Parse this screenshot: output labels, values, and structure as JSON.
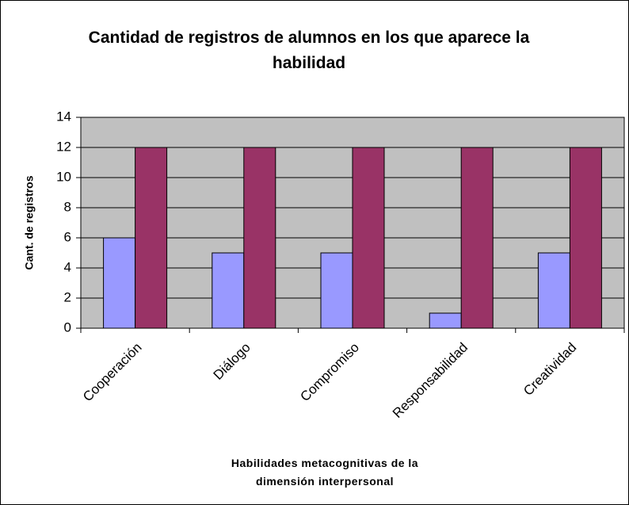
{
  "chart_data": {
    "type": "bar",
    "title": "Cantidad de registros de alumnos en los que aparece la habilidad",
    "xlabel": "Habilidades metacognitivas de la dimensión interpersonal",
    "ylabel": "Cant. de registros",
    "categories": [
      "Cooperación",
      "Diálogo",
      "Compromiso",
      "Responsabilidad",
      "Creatividad"
    ],
    "series": [
      {
        "color": "#9999ff",
        "values": [
          6,
          5,
          5,
          1,
          5
        ]
      },
      {
        "color": "#993366",
        "values": [
          12,
          12,
          12,
          12,
          12
        ]
      }
    ],
    "ylim": [
      0,
      14
    ],
    "yticks": [
      0,
      2,
      4,
      6,
      8,
      10,
      12,
      14
    ],
    "grid": true,
    "plot_background": "#c0c0c0"
  }
}
